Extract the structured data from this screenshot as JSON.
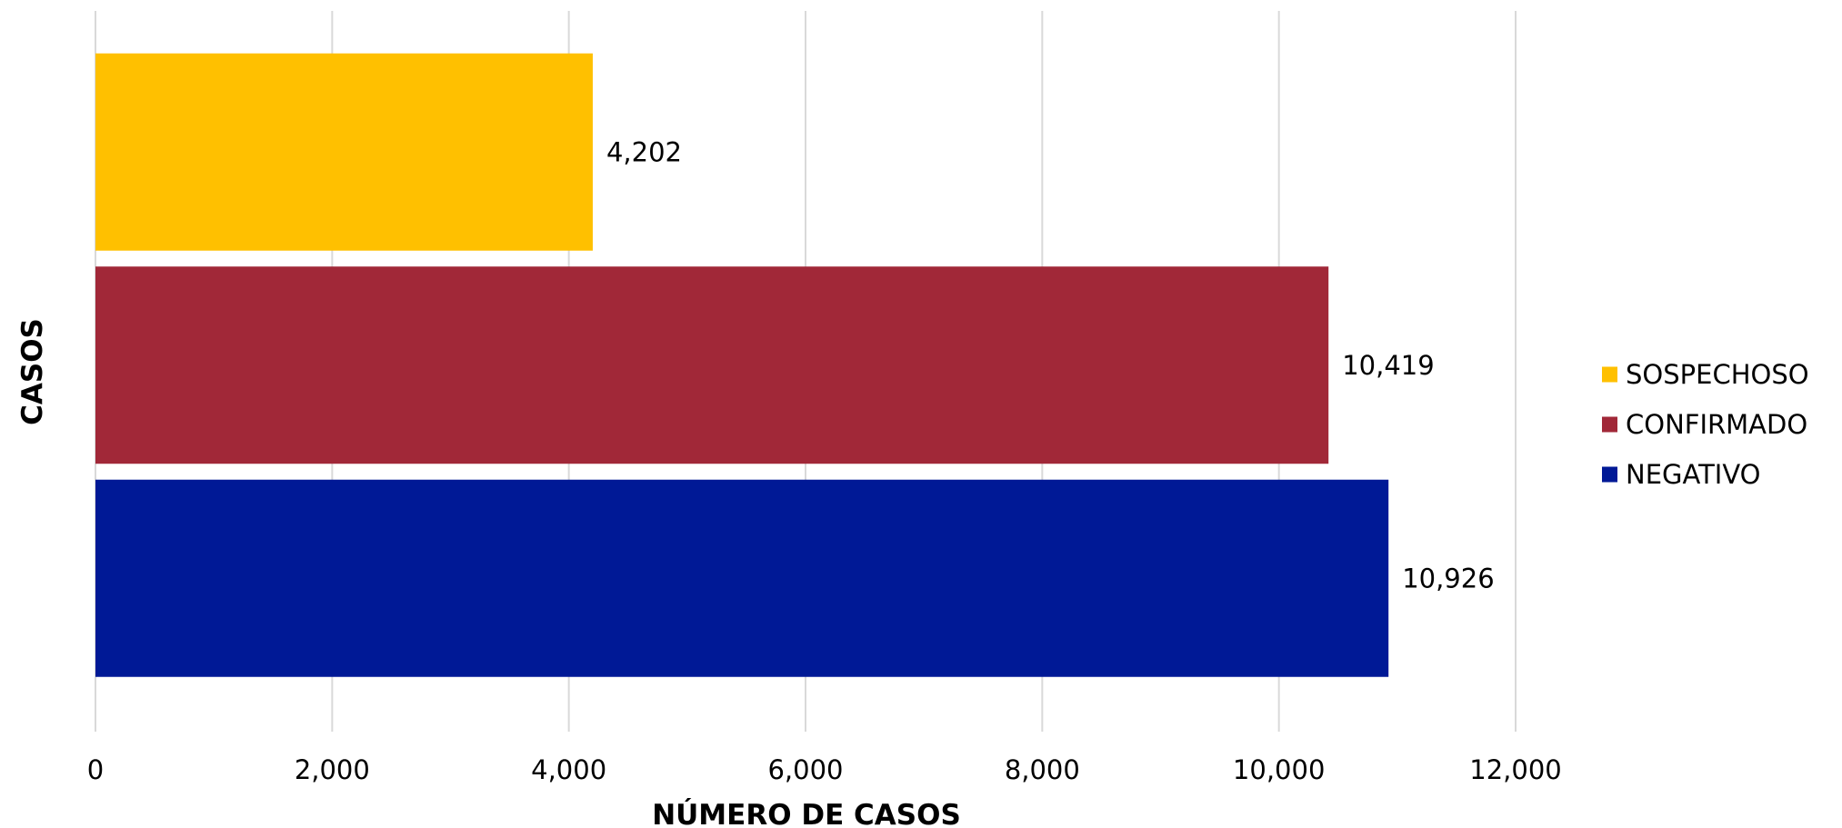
{
  "chart_data": {
    "type": "bar",
    "orientation": "horizontal",
    "categories": [
      "SOSPECHOSO",
      "CONFIRMADO",
      "NEGATIVO"
    ],
    "values": [
      4202,
      10419,
      10926
    ],
    "value_labels": [
      "4,202",
      "10,419",
      "10,926"
    ],
    "colors": [
      "#FFC000",
      "#A12838",
      "#001996"
    ],
    "xlabel": "NÚMERO DE CASOS",
    "ylabel": "CASOS",
    "xlim": [
      0,
      12000
    ],
    "x_ticks": [
      0,
      2000,
      4000,
      6000,
      8000,
      10000,
      12000
    ],
    "x_tick_labels": [
      "0",
      "2,000",
      "4,000",
      "6,000",
      "8,000",
      "10,000",
      "12,000"
    ],
    "grid": "vertical",
    "legend": {
      "placement": "right",
      "entries": [
        "SOSPECHOSO",
        "CONFIRMADO",
        "NEGATIVO"
      ]
    }
  }
}
